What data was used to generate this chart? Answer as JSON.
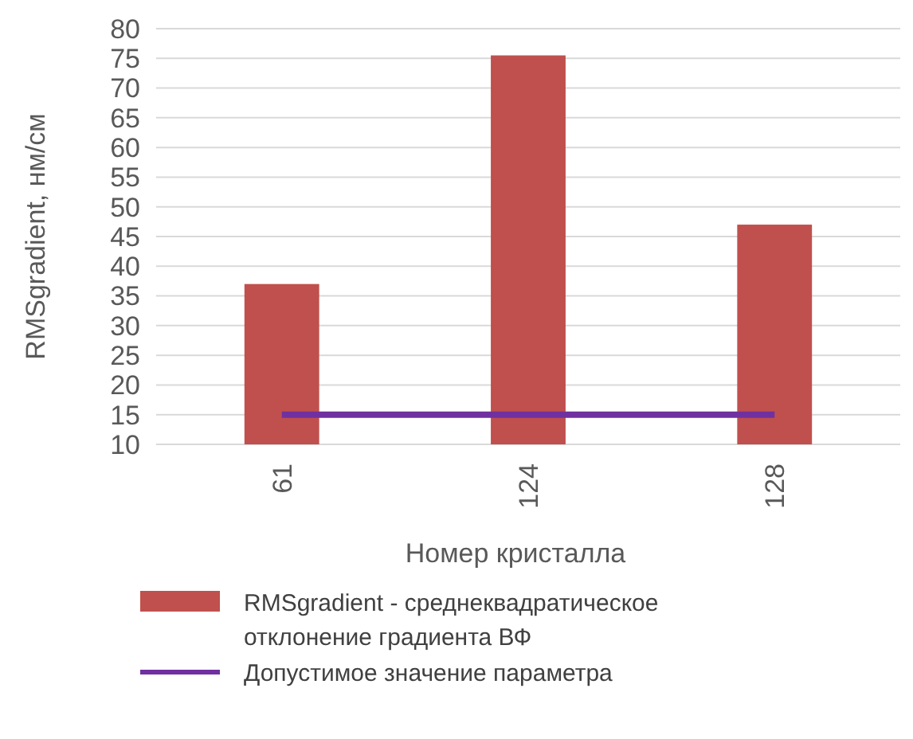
{
  "chart_data": {
    "type": "bar",
    "categories": [
      "61",
      "124",
      "128"
    ],
    "xlabel": "Номер кристалла",
    "ylabel": "RMSgradient, нм/см",
    "series": [
      {
        "name": "RMSgradient - среднеквадратическое отклонение градиента ВФ",
        "color": "#c0504d",
        "values": [
          37,
          75.5,
          47
        ]
      },
      {
        "name": "Допустимое значение параметра",
        "type": "line",
        "color": "#7030a0",
        "values": [
          15,
          15,
          15
        ]
      }
    ],
    "ylim": [
      10,
      80
    ],
    "yticks": [
      10,
      15,
      20,
      25,
      30,
      35,
      40,
      45,
      50,
      55,
      60,
      65,
      70,
      75,
      80
    ],
    "grid": "y",
    "legend": "bottom"
  }
}
